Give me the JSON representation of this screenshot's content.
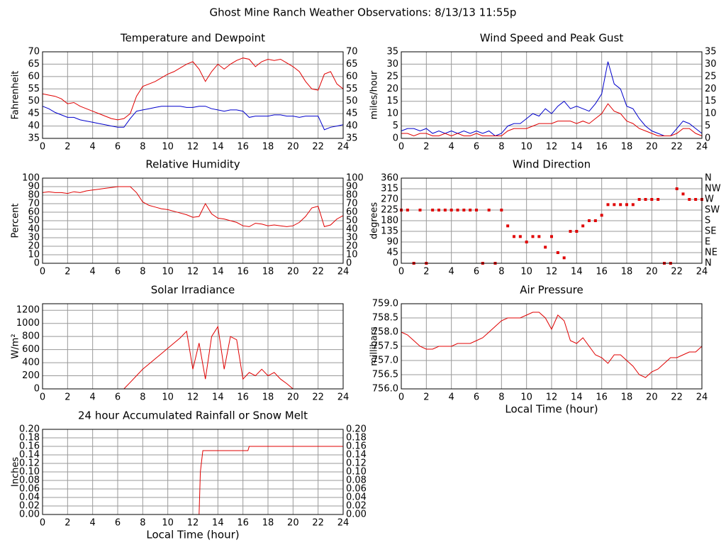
{
  "title": "Ghost Mine Ranch Weather Observations: 8/13/13 11:55p",
  "chart_data": [
    {
      "type": "line",
      "title": "Temperature and Dewpoint",
      "y_label": "Fahrenheit",
      "mirror_y": true,
      "grid": true,
      "x": [
        0,
        0.5,
        1,
        1.5,
        2,
        2.5,
        3,
        3.5,
        4,
        4.5,
        5,
        5.5,
        6,
        6.5,
        7,
        7.5,
        8,
        8.5,
        9,
        9.5,
        10,
        10.5,
        11,
        11.5,
        12,
        12.5,
        13,
        13.5,
        14,
        14.5,
        15,
        15.5,
        16,
        16.5,
        17,
        17.5,
        18,
        18.5,
        19,
        19.5,
        20,
        20.5,
        21,
        21.5,
        22,
        22.5,
        23,
        23.5,
        24
      ],
      "xlim": [
        0,
        24
      ],
      "xticks": [
        0,
        2,
        4,
        6,
        8,
        10,
        12,
        14,
        16,
        18,
        20,
        22,
        24
      ],
      "ylim": [
        35,
        70
      ],
      "yticks": [
        35,
        40,
        45,
        50,
        55,
        60,
        65,
        70
      ],
      "series": [
        {
          "color": "#e00000",
          "values": [
            53,
            52.5,
            52,
            51,
            49,
            49.5,
            48,
            47,
            46,
            45,
            44,
            43,
            42.5,
            43,
            45,
            52,
            56,
            57,
            58,
            59.5,
            61,
            62,
            63.5,
            65,
            66,
            63,
            58,
            62,
            65,
            63,
            65,
            66.5,
            67.5,
            67,
            64,
            66,
            67,
            66.5,
            67,
            65.5,
            64,
            62,
            58,
            55,
            54.5,
            61,
            62,
            57,
            55
          ]
        },
        {
          "color": "#0000cc",
          "values": [
            48,
            47,
            45.5,
            44.5,
            43.5,
            43.5,
            42.5,
            42,
            41.5,
            41,
            40.5,
            40,
            39.5,
            39.5,
            43,
            46,
            46.5,
            47,
            47.5,
            48,
            48,
            48,
            48,
            47.5,
            47.5,
            48,
            48,
            47,
            46.5,
            46,
            46.5,
            46.5,
            46,
            43.5,
            44,
            44,
            44,
            44.5,
            44.5,
            44,
            44,
            43.5,
            44,
            44,
            44,
            38.5,
            39.5,
            40,
            40.5
          ]
        }
      ]
    },
    {
      "type": "line",
      "title": "Wind Speed and Peak Gust",
      "y_label": "miles/hour",
      "mirror_y": true,
      "grid": true,
      "x": [
        0,
        0.5,
        1,
        1.5,
        2,
        2.5,
        3,
        3.5,
        4,
        4.5,
        5,
        5.5,
        6,
        6.5,
        7,
        7.5,
        8,
        8.5,
        9,
        9.5,
        10,
        10.5,
        11,
        11.5,
        12,
        12.5,
        13,
        13.5,
        14,
        14.5,
        15,
        15.5,
        16,
        16.5,
        17,
        17.5,
        18,
        18.5,
        19,
        19.5,
        20,
        20.5,
        21,
        21.5,
        22,
        22.5,
        23,
        23.5,
        24
      ],
      "xlim": [
        0,
        24
      ],
      "xticks": [
        0,
        2,
        4,
        6,
        8,
        10,
        12,
        14,
        16,
        18,
        20,
        22,
        24
      ],
      "ylim": [
        0,
        35
      ],
      "yticks": [
        0,
        5,
        10,
        15,
        20,
        25,
        30,
        35
      ],
      "series": [
        {
          "color": "#0000cc",
          "values": [
            3,
            4,
            4,
            3,
            4,
            2,
            3,
            2,
            3,
            2,
            3,
            2,
            3,
            2,
            3,
            1,
            2,
            5,
            6,
            6,
            8,
            10,
            9,
            12,
            10,
            13,
            15,
            12,
            13,
            12,
            11,
            14,
            18,
            31,
            22,
            20,
            13,
            12,
            8,
            5,
            3,
            2,
            1,
            1,
            4,
            7,
            6,
            4,
            2
          ]
        },
        {
          "color": "#e00000",
          "values": [
            2,
            2,
            1,
            2,
            2,
            1,
            1,
            2,
            1,
            2,
            1,
            1,
            2,
            1,
            1,
            1,
            1,
            3,
            4,
            4,
            4,
            5,
            6,
            6,
            6,
            7,
            7,
            7,
            6,
            7,
            6,
            8,
            10,
            14,
            11,
            10,
            7,
            6,
            4,
            3,
            2,
            1,
            1,
            1,
            2,
            4,
            4,
            2,
            1
          ]
        }
      ]
    },
    {
      "type": "line",
      "title": "Relative Humidity",
      "y_label": "Percent",
      "mirror_y": true,
      "grid": true,
      "x": [
        0,
        0.5,
        1,
        1.5,
        2,
        2.5,
        3,
        3.5,
        4,
        4.5,
        5,
        5.5,
        6,
        6.5,
        7,
        7.5,
        8,
        8.5,
        9,
        9.5,
        10,
        10.5,
        11,
        11.5,
        12,
        12.5,
        13,
        13.5,
        14,
        14.5,
        15,
        15.5,
        16,
        16.5,
        17,
        17.5,
        18,
        18.5,
        19,
        19.5,
        20,
        20.5,
        21,
        21.5,
        22,
        22.5,
        23,
        23.5,
        24
      ],
      "xlim": [
        0,
        24
      ],
      "xticks": [
        0,
        2,
        4,
        6,
        8,
        10,
        12,
        14,
        16,
        18,
        20,
        22,
        24
      ],
      "ylim": [
        0,
        100
      ],
      "yticks": [
        0,
        10,
        20,
        30,
        40,
        50,
        60,
        70,
        80,
        90,
        100
      ],
      "series": [
        {
          "color": "#e00000",
          "values": [
            83,
            84,
            83,
            83,
            82,
            84,
            83,
            85,
            86,
            87,
            88,
            89,
            90,
            90,
            90,
            83,
            72,
            68,
            66,
            64,
            63,
            61,
            59,
            57,
            54,
            55,
            70,
            58,
            53,
            52,
            50,
            48,
            44,
            43,
            47,
            46,
            44,
            45,
            44,
            43,
            44,
            48,
            55,
            65,
            67,
            43,
            45,
            52,
            56
          ]
        }
      ]
    },
    {
      "type": "scatter",
      "title": "Wind Direction",
      "y_label": "degrees",
      "grid": true,
      "x": [
        0,
        0.5,
        1,
        1.5,
        2,
        2.5,
        3,
        3.5,
        4,
        4.5,
        5,
        5.5,
        6,
        6.5,
        7,
        7.5,
        8,
        8.5,
        9,
        9.5,
        10,
        10.5,
        11,
        11.5,
        12,
        12.5,
        13,
        13.5,
        14,
        14.5,
        15,
        15.5,
        16,
        16.5,
        17,
        17.5,
        18,
        18.5,
        19,
        19.5,
        20,
        20.5,
        21,
        21.5,
        22,
        22.5,
        23,
        23.5,
        24
      ],
      "xlim": [
        0,
        24
      ],
      "xticks": [
        0,
        2,
        4,
        6,
        8,
        10,
        12,
        14,
        16,
        18,
        20,
        22,
        24
      ],
      "ylim": [
        0,
        360
      ],
      "yticks": [
        0,
        45,
        90,
        135,
        180,
        225,
        270,
        315,
        360
      ],
      "y2lim": [
        0,
        360
      ],
      "y2ticks": [
        {
          "value": 0,
          "label": "N"
        },
        {
          "value": 45,
          "label": "NE"
        },
        {
          "value": 90,
          "label": "E"
        },
        {
          "value": 135,
          "label": "SE"
        },
        {
          "value": 180,
          "label": "S"
        },
        {
          "value": 225,
          "label": "SW"
        },
        {
          "value": 270,
          "label": "W"
        },
        {
          "value": 315,
          "label": "NW"
        },
        {
          "value": 360,
          "label": "N"
        }
      ],
      "series": [
        {
          "color": "#e00000",
          "values": [
            225,
            225,
            0,
            225,
            0,
            225,
            225,
            225,
            225,
            225,
            225,
            225,
            225,
            0,
            225,
            0,
            225,
            158,
            113,
            113,
            90,
            113,
            113,
            68,
            113,
            45,
            23,
            135,
            135,
            158,
            180,
            180,
            203,
            248,
            248,
            248,
            248,
            248,
            270,
            270,
            270,
            270,
            0,
            0,
            315,
            293,
            270,
            270,
            270
          ]
        }
      ]
    },
    {
      "type": "line",
      "title": "Solar Irradiance",
      "y_label": "W/m²",
      "grid": true,
      "x": [
        0,
        0.5,
        1,
        1.5,
        2,
        2.5,
        3,
        3.5,
        4,
        4.5,
        5,
        5.5,
        6,
        6.5,
        7,
        7.5,
        8,
        8.5,
        9,
        9.5,
        10,
        10.5,
        11,
        11.5,
        12,
        12.5,
        13,
        13.5,
        14,
        14.5,
        15,
        15.5,
        16,
        16.5,
        17,
        17.5,
        18,
        18.5,
        19,
        19.5,
        20,
        20.5,
        21,
        21.5,
        22,
        22.5,
        23,
        23.5,
        24
      ],
      "xlim": [
        0,
        24
      ],
      "xticks": [
        0,
        2,
        4,
        6,
        8,
        10,
        12,
        14,
        16,
        18,
        20,
        22,
        24
      ],
      "ylim": [
        0,
        1300
      ],
      "yticks": [
        0,
        200,
        400,
        600,
        800,
        1000,
        1200
      ],
      "series": [
        {
          "color": "#e00000",
          "values": [
            0,
            0,
            0,
            0,
            0,
            0,
            0,
            0,
            0,
            0,
            0,
            0,
            0,
            0,
            100,
            200,
            300,
            380,
            460,
            540,
            620,
            700,
            780,
            880,
            300,
            700,
            150,
            800,
            950,
            300,
            800,
            750,
            150,
            250,
            200,
            300,
            200,
            250,
            150,
            80,
            0,
            0,
            0,
            0,
            0,
            0,
            0,
            0,
            0
          ]
        }
      ]
    },
    {
      "type": "line",
      "title": "Air Pressure",
      "y_label": "millibars",
      "x_label": "Local Time (hour)",
      "grid": true,
      "x": [
        0,
        0.5,
        1,
        1.5,
        2,
        2.5,
        3,
        3.5,
        4,
        4.5,
        5,
        5.5,
        6,
        6.5,
        7,
        7.5,
        8,
        8.5,
        9,
        9.5,
        10,
        10.5,
        11,
        11.5,
        12,
        12.5,
        13,
        13.5,
        14,
        14.5,
        15,
        15.5,
        16,
        16.5,
        17,
        17.5,
        18,
        18.5,
        19,
        19.5,
        20,
        20.5,
        21,
        21.5,
        22,
        22.5,
        23,
        23.5,
        24
      ],
      "xlim": [
        0,
        24
      ],
      "xticks": [
        0,
        2,
        4,
        6,
        8,
        10,
        12,
        14,
        16,
        18,
        20,
        22,
        24
      ],
      "ylim": [
        756,
        759
      ],
      "yticks": [
        {
          "value": 756,
          "label": "756.0"
        },
        756.5,
        {
          "value": 757,
          "label": "757.0"
        },
        757.5,
        {
          "value": 758,
          "label": "758.0"
        },
        758.5,
        {
          "value": 759,
          "label": "759.0"
        }
      ],
      "series": [
        {
          "color": "#e00000",
          "values": [
            758.0,
            757.9,
            757.7,
            757.5,
            757.4,
            757.4,
            757.5,
            757.5,
            757.5,
            757.6,
            757.6,
            757.6,
            757.7,
            757.8,
            758.0,
            758.2,
            758.4,
            758.5,
            758.5,
            758.5,
            758.6,
            758.7,
            758.7,
            758.5,
            758.1,
            758.6,
            758.4,
            757.7,
            757.6,
            757.8,
            757.5,
            757.2,
            757.1,
            756.9,
            757.2,
            757.2,
            757.0,
            756.8,
            756.5,
            756.4,
            756.6,
            756.7,
            756.9,
            757.1,
            757.1,
            757.2,
            757.3,
            757.3,
            757.5
          ]
        }
      ]
    },
    {
      "type": "line",
      "title": "24 hour Accumulated Rainfall or Snow Melt",
      "y_label": "Inches",
      "x_label": "Local Time (hour)",
      "mirror_y": true,
      "grid": true,
      "x": [
        0,
        12.5,
        12.6,
        12.8,
        16.4,
        16.5,
        24
      ],
      "xlim": [
        0,
        24
      ],
      "xticks": [
        0,
        2,
        4,
        6,
        8,
        10,
        12,
        14,
        16,
        18,
        20,
        22,
        24
      ],
      "ylim": [
        0,
        0.2
      ],
      "yticks": [
        {
          "value": 0,
          "label": "0.00"
        },
        {
          "value": 0.02,
          "label": "0.02"
        },
        {
          "value": 0.04,
          "label": "0.04"
        },
        {
          "value": 0.06,
          "label": "0.06"
        },
        {
          "value": 0.08,
          "label": "0.08"
        },
        {
          "value": 0.1,
          "label": "0.10"
        },
        {
          "value": 0.12,
          "label": "0.12"
        },
        {
          "value": 0.14,
          "label": "0.14"
        },
        {
          "value": 0.16,
          "label": "0.16"
        },
        {
          "value": 0.18,
          "label": "0.18"
        },
        {
          "value": 0.2,
          "label": "0.20"
        }
      ],
      "series": [
        {
          "color": "#e00000",
          "values": [
            0,
            0,
            0.1,
            0.15,
            0.15,
            0.16,
            0.16
          ]
        }
      ]
    }
  ]
}
